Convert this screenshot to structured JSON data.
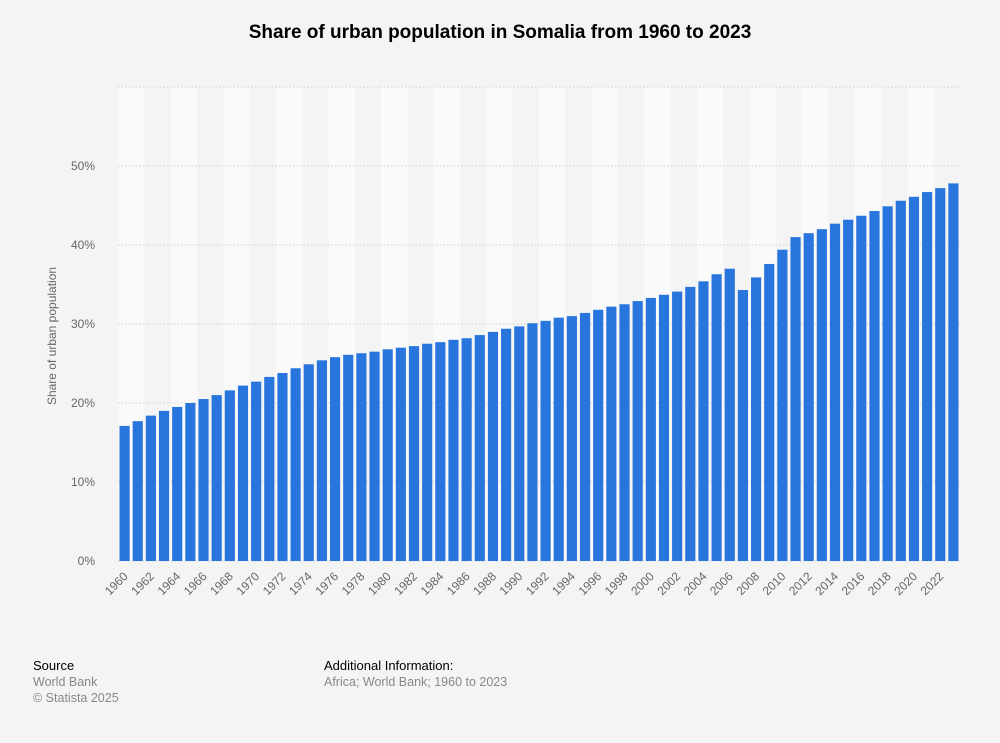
{
  "chart_data": {
    "type": "bar",
    "title": "Share of urban population in Somalia from 1960 to 2023",
    "ylabel": "Share of urban population",
    "xlabel": "",
    "ylim": [
      0,
      60
    ],
    "yticks": [
      "0%",
      "10%",
      "20%",
      "30%",
      "40%",
      "50%"
    ],
    "grid": true,
    "categories": [
      "1960",
      "1961",
      "1962",
      "1963",
      "1964",
      "1965",
      "1966",
      "1967",
      "1968",
      "1969",
      "1970",
      "1971",
      "1972",
      "1973",
      "1974",
      "1975",
      "1976",
      "1977",
      "1978",
      "1979",
      "1980",
      "1981",
      "1982",
      "1983",
      "1984",
      "1985",
      "1986",
      "1987",
      "1988",
      "1989",
      "1990",
      "1991",
      "1992",
      "1993",
      "1994",
      "1995",
      "1996",
      "1997",
      "1998",
      "1999",
      "2000",
      "2001",
      "2002",
      "2003",
      "2004",
      "2005",
      "2006",
      "2007",
      "2008",
      "2009",
      "2010",
      "2011",
      "2012",
      "2013",
      "2014",
      "2015",
      "2016",
      "2017",
      "2018",
      "2019",
      "2020",
      "2021",
      "2022",
      "2023"
    ],
    "values": [
      17.1,
      17.7,
      18.4,
      19.0,
      19.5,
      20.0,
      20.5,
      21.0,
      21.6,
      22.2,
      22.7,
      23.3,
      23.8,
      24.4,
      24.9,
      25.4,
      25.8,
      26.1,
      26.3,
      26.5,
      26.8,
      27.0,
      27.2,
      27.5,
      27.7,
      28.0,
      28.2,
      28.6,
      29.0,
      29.4,
      29.7,
      30.1,
      30.4,
      30.8,
      31.0,
      31.4,
      31.8,
      32.2,
      32.5,
      32.9,
      33.3,
      33.7,
      34.1,
      34.7,
      35.4,
      36.3,
      37.0,
      34.3,
      35.9,
      37.6,
      39.4,
      41.0,
      41.5,
      42.0,
      42.7,
      43.2,
      43.7,
      44.3,
      44.9,
      45.6,
      46.1,
      46.7,
      47.2,
      47.8
    ],
    "bar_color": "#2876dd"
  },
  "footer": {
    "source_heading": "Source",
    "source": "World Bank",
    "copyright": "© Statista 2025",
    "info_heading": "Additional Information:",
    "info": "Africa; World Bank; 1960 to 2023"
  }
}
